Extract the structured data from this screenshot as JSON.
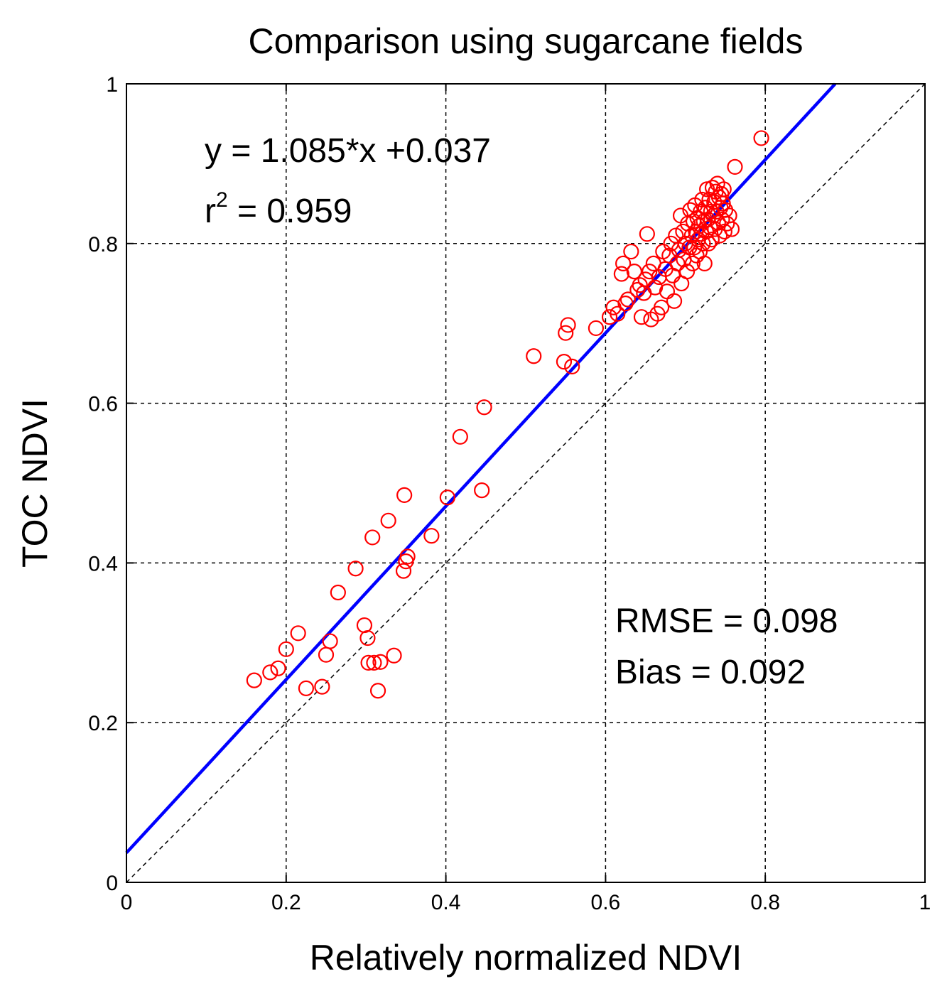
{
  "chart_data": {
    "type": "scatter",
    "title": "Comparison using sugarcane fields",
    "xlabel": "Relatively normalized NDVI",
    "ylabel": "TOC NDVI",
    "xlim": [
      0,
      1
    ],
    "ylim": [
      0,
      1
    ],
    "grid": true,
    "xticks": [
      0,
      0.2,
      0.4,
      0.6,
      0.8,
      1
    ],
    "yticks": [
      0,
      0.2,
      0.4,
      0.6,
      0.8,
      1
    ],
    "xtick_labels": [
      "0",
      "0.2",
      "0.4",
      "0.6",
      "0.8",
      "1"
    ],
    "ytick_labels": [
      "0",
      "0.2",
      "0.4",
      "0.6",
      "0.8",
      "1"
    ],
    "marker_color": "#ff0000",
    "fit_color": "#0000ff",
    "reference_color": "#000000",
    "fit": {
      "slope": 1.085,
      "intercept": 0.037
    },
    "reference_line": {
      "slope": 1,
      "intercept": 0
    },
    "annotations": {
      "equation": "y = 1.085*x +0.037",
      "r2_prefix": "r",
      "r2_superscript": "2",
      "r2_suffix": " = 0.959",
      "rmse": "RMSE = 0.098",
      "bias": "Bias = 0.092"
    },
    "points": [
      [
        0.16,
        0.253
      ],
      [
        0.18,
        0.263
      ],
      [
        0.19,
        0.268
      ],
      [
        0.2,
        0.292
      ],
      [
        0.215,
        0.312
      ],
      [
        0.225,
        0.243
      ],
      [
        0.245,
        0.245
      ],
      [
        0.25,
        0.285
      ],
      [
        0.255,
        0.302
      ],
      [
        0.265,
        0.363
      ],
      [
        0.287,
        0.393
      ],
      [
        0.298,
        0.322
      ],
      [
        0.302,
        0.306
      ],
      [
        0.303,
        0.275
      ],
      [
        0.308,
        0.432
      ],
      [
        0.31,
        0.275
      ],
      [
        0.315,
        0.24
      ],
      [
        0.318,
        0.276
      ],
      [
        0.328,
        0.453
      ],
      [
        0.335,
        0.284
      ],
      [
        0.347,
        0.39
      ],
      [
        0.348,
        0.485
      ],
      [
        0.35,
        0.402
      ],
      [
        0.352,
        0.408
      ],
      [
        0.382,
        0.434
      ],
      [
        0.402,
        0.482
      ],
      [
        0.418,
        0.558
      ],
      [
        0.445,
        0.491
      ],
      [
        0.448,
        0.595
      ],
      [
        0.51,
        0.659
      ],
      [
        0.548,
        0.652
      ],
      [
        0.55,
        0.688
      ],
      [
        0.553,
        0.698
      ],
      [
        0.558,
        0.646
      ],
      [
        0.588,
        0.694
      ],
      [
        0.605,
        0.708
      ],
      [
        0.61,
        0.72
      ],
      [
        0.615,
        0.712
      ],
      [
        0.62,
        0.762
      ],
      [
        0.622,
        0.775
      ],
      [
        0.625,
        0.725
      ],
      [
        0.628,
        0.73
      ],
      [
        0.632,
        0.79
      ],
      [
        0.636,
        0.765
      ],
      [
        0.64,
        0.742
      ],
      [
        0.643,
        0.748
      ],
      [
        0.645,
        0.708
      ],
      [
        0.648,
        0.738
      ],
      [
        0.65,
        0.755
      ],
      [
        0.652,
        0.812
      ],
      [
        0.655,
        0.765
      ],
      [
        0.657,
        0.705
      ],
      [
        0.66,
        0.775
      ],
      [
        0.662,
        0.745
      ],
      [
        0.665,
        0.712
      ],
      [
        0.667,
        0.758
      ],
      [
        0.67,
        0.72
      ],
      [
        0.672,
        0.79
      ],
      [
        0.675,
        0.768
      ],
      [
        0.677,
        0.74
      ],
      [
        0.68,
        0.785
      ],
      [
        0.682,
        0.8
      ],
      [
        0.684,
        0.76
      ],
      [
        0.686,
        0.728
      ],
      [
        0.688,
        0.81
      ],
      [
        0.69,
        0.775
      ],
      [
        0.692,
        0.792
      ],
      [
        0.694,
        0.835
      ],
      [
        0.695,
        0.75
      ],
      [
        0.697,
        0.815
      ],
      [
        0.698,
        0.78
      ],
      [
        0.7,
        0.8
      ],
      [
        0.702,
        0.765
      ],
      [
        0.703,
        0.825
      ],
      [
        0.705,
        0.795
      ],
      [
        0.706,
        0.842
      ],
      [
        0.708,
        0.81
      ],
      [
        0.709,
        0.775
      ],
      [
        0.71,
        0.828
      ],
      [
        0.711,
        0.795
      ],
      [
        0.712,
        0.848
      ],
      [
        0.713,
        0.815
      ],
      [
        0.714,
        0.785
      ],
      [
        0.715,
        0.832
      ],
      [
        0.716,
        0.805
      ],
      [
        0.717,
        0.822
      ],
      [
        0.718,
        0.79
      ],
      [
        0.719,
        0.84
      ],
      [
        0.72,
        0.812
      ],
      [
        0.721,
        0.855
      ],
      [
        0.722,
        0.8
      ],
      [
        0.723,
        0.828
      ],
      [
        0.724,
        0.775
      ],
      [
        0.725,
        0.845
      ],
      [
        0.726,
        0.815
      ],
      [
        0.727,
        0.868
      ],
      [
        0.728,
        0.83
      ],
      [
        0.729,
        0.8
      ],
      [
        0.73,
        0.855
      ],
      [
        0.731,
        0.82
      ],
      [
        0.732,
        0.84
      ],
      [
        0.733,
        0.805
      ],
      [
        0.734,
        0.87
      ],
      [
        0.735,
        0.835
      ],
      [
        0.736,
        0.852
      ],
      [
        0.737,
        0.818
      ],
      [
        0.738,
        0.865
      ],
      [
        0.739,
        0.84
      ],
      [
        0.74,
        0.875
      ],
      [
        0.741,
        0.826
      ],
      [
        0.742,
        0.858
      ],
      [
        0.743,
        0.81
      ],
      [
        0.744,
        0.845
      ],
      [
        0.745,
        0.862
      ],
      [
        0.746,
        0.83
      ],
      [
        0.747,
        0.85
      ],
      [
        0.748,
        0.868
      ],
      [
        0.749,
        0.815
      ],
      [
        0.75,
        0.842
      ],
      [
        0.752,
        0.825
      ],
      [
        0.755,
        0.835
      ],
      [
        0.758,
        0.818
      ],
      [
        0.762,
        0.896
      ],
      [
        0.795,
        0.932
      ]
    ]
  }
}
